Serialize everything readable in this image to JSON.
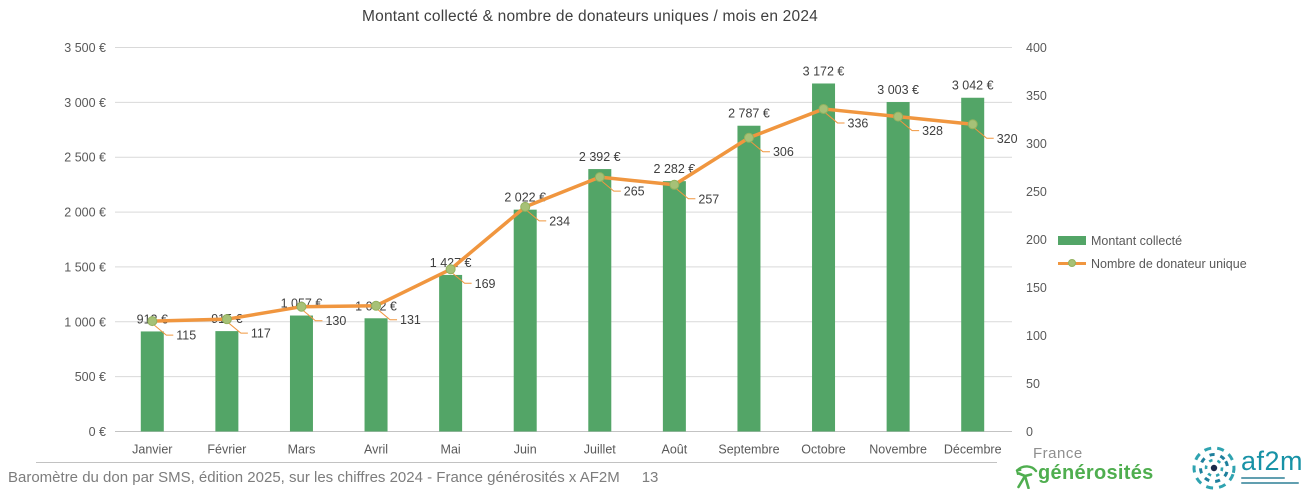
{
  "chart_data": {
    "type": "bar",
    "subtype": "combo-bar-line",
    "title": "Montant collecté & nombre de donateurs uniques / mois en 2024",
    "categories": [
      "Janvier",
      "Février",
      "Mars",
      "Avril",
      "Mai",
      "Juin",
      "Juillet",
      "Août",
      "Septembre",
      "Octobre",
      "Novembre",
      "Décembre"
    ],
    "series": [
      {
        "name": "Montant collecté",
        "type": "bar",
        "axis": "left",
        "color": "#53A567",
        "values": [
          912,
          915,
          1057,
          1032,
          1427,
          2022,
          2392,
          2282,
          2787,
          3172,
          3003,
          3042
        ],
        "labels": [
          "912 €",
          "915 €",
          "1 057 €",
          "1 032 €",
          "1 427 €",
          "2 022 €",
          "2 392 €",
          "2 282 €",
          "2 787 €",
          "3 172 €",
          "3 003 €",
          "3 042 €"
        ]
      },
      {
        "name": "Nombre de donateur unique",
        "type": "line",
        "axis": "right",
        "color": "#F0963F",
        "marker_color": "#A6C177",
        "marker_border": "#93B25F",
        "values": [
          115,
          117,
          130,
          131,
          169,
          234,
          265,
          257,
          306,
          336,
          328,
          320
        ]
      }
    ],
    "left_axis": {
      "min": 0,
      "max": 3500,
      "step": 500,
      "tick_labels": [
        "0 €",
        "500 €",
        "1 000 €",
        "1 500 €",
        "2 000 €",
        "2 500 €",
        "3 000 €",
        "3 500 €"
      ]
    },
    "right_axis": {
      "min": 0,
      "max": 400,
      "step": 50,
      "tick_labels": [
        "0",
        "50",
        "100",
        "150",
        "200",
        "250",
        "300",
        "350",
        "400"
      ]
    },
    "grid": "horizontal",
    "legend_position": "right"
  },
  "footer": {
    "text": "Baromètre du don par SMS, édition 2025, sur les chiffres 2024 - France générosités x AF2M",
    "page_number": "13"
  },
  "logos": {
    "france_generosites": {
      "line1": "France",
      "line2": "générosités"
    },
    "af2m": {
      "name": "af2m"
    }
  }
}
